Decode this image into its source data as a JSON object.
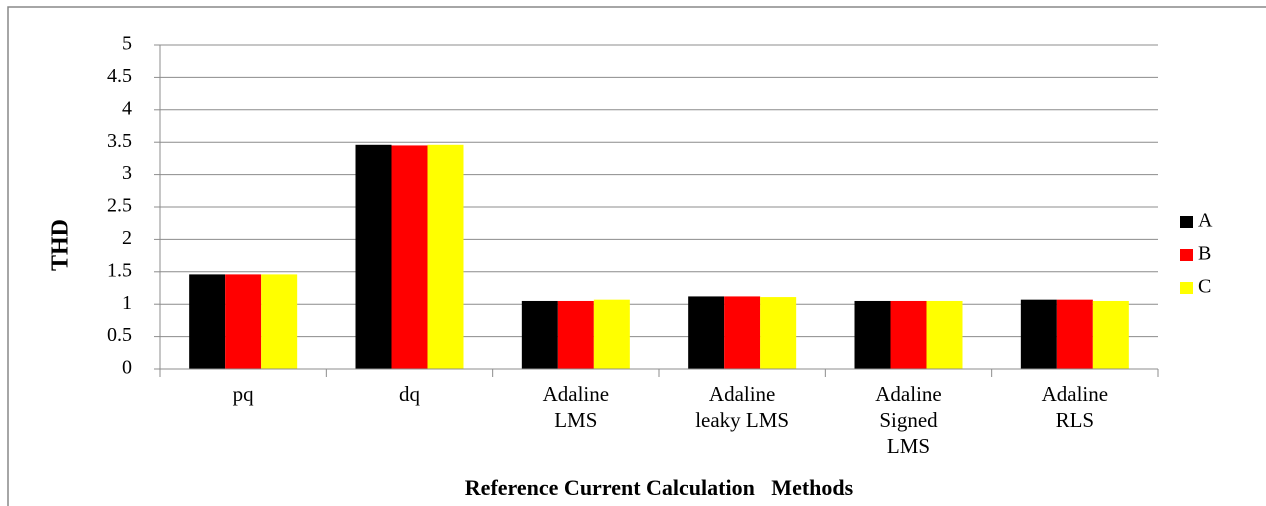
{
  "chart_data": {
    "type": "bar",
    "x_label": "Reference Current Calculation   Methods",
    "y_label": "THD",
    "categories": [
      "pq",
      "dq",
      "Adaline\nLMS",
      "Adaline\nleaky LMS",
      "Adaline\nSigned\nLMS",
      "Adaline\nRLS"
    ],
    "series": [
      {
        "name": "A",
        "color": "#000000",
        "values": [
          1.46,
          3.46,
          1.05,
          1.12,
          1.05,
          1.07
        ]
      },
      {
        "name": "B",
        "color": "#ff0000",
        "values": [
          1.46,
          3.45,
          1.05,
          1.12,
          1.05,
          1.07
        ]
      },
      {
        "name": "C",
        "color": "#ffff00",
        "values": [
          1.46,
          3.46,
          1.07,
          1.11,
          1.05,
          1.05
        ]
      }
    ],
    "ylim": [
      0,
      5
    ],
    "yticks": [
      0,
      0.5,
      1,
      1.5,
      2,
      2.5,
      3,
      3.5,
      4,
      4.5,
      5
    ],
    "grid": true,
    "legend": "right"
  }
}
